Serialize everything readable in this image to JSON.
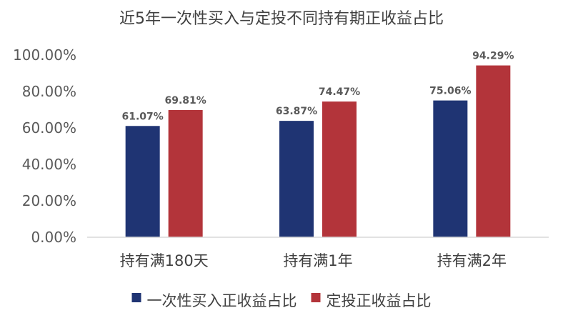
{
  "chart_data": {
    "type": "bar",
    "title": "近5年一次性买入与定投不同持有期正收益占比",
    "categories": [
      "持有满180天",
      "持有满1年",
      "持有满2年"
    ],
    "series": [
      {
        "name": "一次性买入正收益占比",
        "values": [
          61.07,
          63.87,
          75.06
        ],
        "labels": [
          "61.07%",
          "63.87%",
          "75.06%"
        ],
        "color": "#1F3473"
      },
      {
        "name": "定投正收益占比",
        "values": [
          69.81,
          74.47,
          94.29
        ],
        "labels": [
          "69.81%",
          "74.47%",
          "94.29%"
        ],
        "color": "#B3343A"
      }
    ],
    "ylim": [
      0,
      100
    ],
    "yticks": [
      "0.00%",
      "20.00%",
      "40.00%",
      "60.00%",
      "80.00%",
      "100.00%"
    ],
    "ytick_values": [
      0,
      20,
      40,
      60,
      80,
      100
    ],
    "grid": false,
    "legend_position": "bottom",
    "xlabel": "",
    "ylabel": ""
  }
}
